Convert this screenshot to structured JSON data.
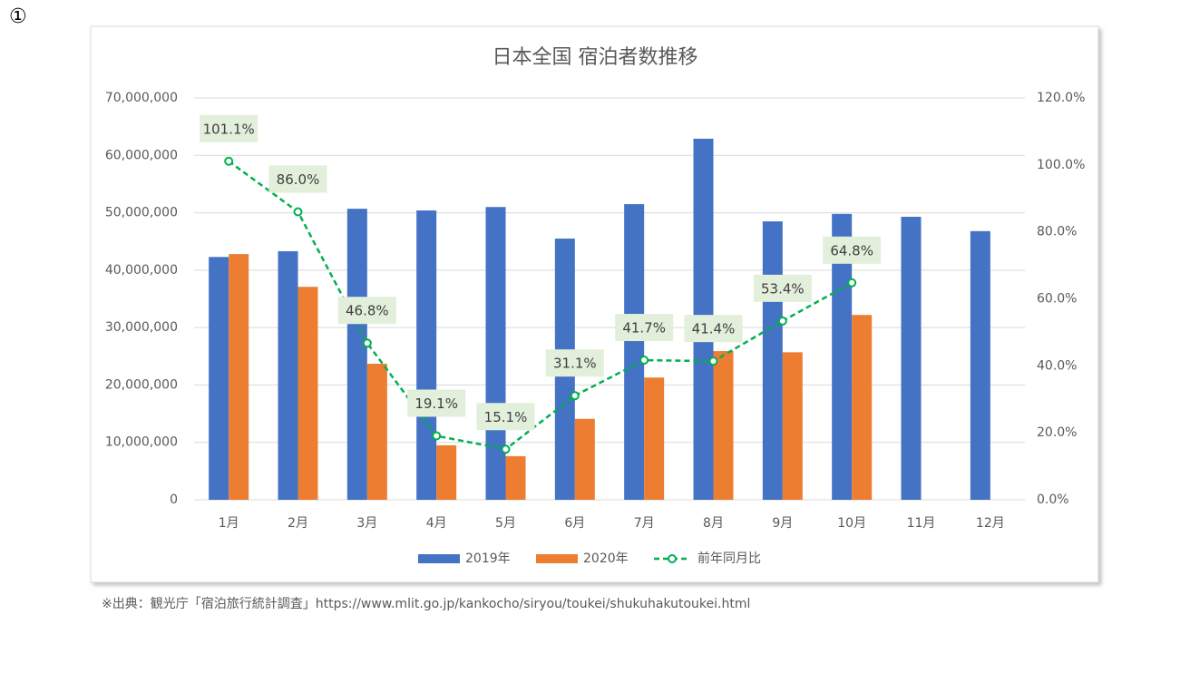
{
  "marker": "①",
  "source": "※出典：観光庁「宿泊旅行統計調査」https://www.mlit.go.jp/kankocho/siryou/toukei/shukuhakutoukei.html",
  "chart_data": {
    "type": "bar",
    "title": "日本全国 宿泊者数推移",
    "categories": [
      "1月",
      "2月",
      "3月",
      "4月",
      "5月",
      "6月",
      "7月",
      "8月",
      "9月",
      "10月",
      "11月",
      "12月"
    ],
    "series": [
      {
        "name": "2019年",
        "color": "#4472c4",
        "axis": "y",
        "values": [
          42300000,
          43300000,
          50700000,
          50400000,
          51000000,
          45500000,
          51500000,
          62900000,
          48500000,
          49800000,
          49300000,
          46800000
        ]
      },
      {
        "name": "2020年",
        "color": "#ed7d31",
        "axis": "y",
        "values": [
          42800000,
          37100000,
          23700000,
          9500000,
          7600000,
          14100000,
          21300000,
          25900000,
          25700000,
          32200000,
          null,
          null
        ]
      },
      {
        "name": "前年同月比",
        "color": "#00b050",
        "axis": "y2",
        "type": "line",
        "values": [
          101.1,
          86.0,
          46.8,
          19.1,
          15.1,
          31.1,
          41.7,
          41.4,
          53.4,
          64.8,
          null,
          null
        ],
        "value_labels": [
          "101.1%",
          "86.0%",
          "46.8%",
          "19.1%",
          "15.1%",
          "31.1%",
          "41.7%",
          "41.4%",
          "53.4%",
          "64.8%",
          null,
          null
        ]
      }
    ],
    "ylim": [
      0,
      70000000
    ],
    "yticks": [
      0,
      {
        "value": 10000000,
        "label": "10,000,000"
      },
      {
        "value": 20000000,
        "label": "20,000,000"
      },
      {
        "value": 30000000,
        "label": "30,000,000"
      },
      {
        "value": 40000000,
        "label": "40,000,000"
      },
      {
        "value": 50000000,
        "label": "50,000,000"
      },
      {
        "value": 60000000,
        "label": "60,000,000"
      },
      {
        "value": 70000000,
        "label": "70,000,000"
      }
    ],
    "y2lim": [
      0,
      120
    ],
    "y2ticks": [
      {
        "value": 0,
        "label": "0.0%"
      },
      {
        "value": 20,
        "label": "20.0%"
      },
      {
        "value": 40,
        "label": "40.0%"
      },
      {
        "value": 60,
        "label": "60.0%"
      },
      {
        "value": 80,
        "label": "80.0%"
      },
      {
        "value": 100,
        "label": "100.0%"
      },
      {
        "value": 120,
        "label": "120.0%"
      }
    ],
    "grid": true,
    "legend": "bottom"
  }
}
